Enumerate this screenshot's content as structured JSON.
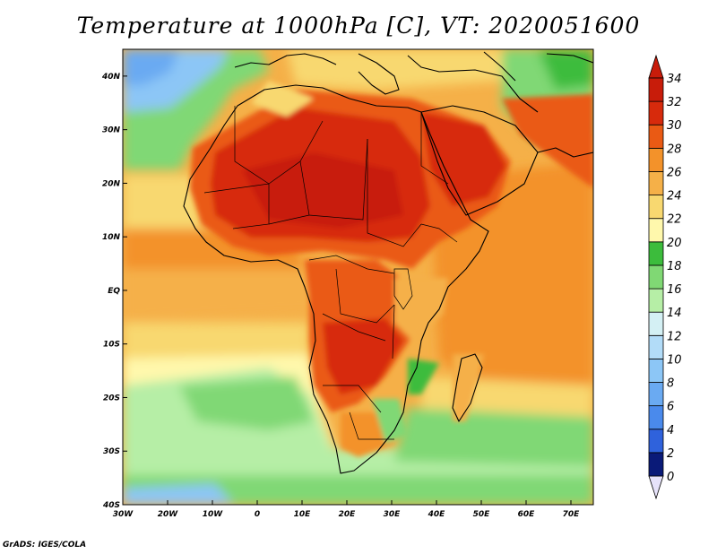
{
  "title": "Temperature at 1000hPa [C], VT: 2020051600",
  "credit": "GrADS: IGES/COLA",
  "map": {
    "lon_range": [
      -30,
      75
    ],
    "lat_range": [
      -40,
      45
    ],
    "lon_ticks": [
      {
        "value": -30,
        "label": "30W"
      },
      {
        "value": -20,
        "label": "20W"
      },
      {
        "value": -10,
        "label": "10W"
      },
      {
        "value": 0,
        "label": "0"
      },
      {
        "value": 10,
        "label": "10E"
      },
      {
        "value": 20,
        "label": "20E"
      },
      {
        "value": 30,
        "label": "30E"
      },
      {
        "value": 40,
        "label": "40E"
      },
      {
        "value": 50,
        "label": "50E"
      },
      {
        "value": 60,
        "label": "60E"
      },
      {
        "value": 70,
        "label": "70E"
      }
    ],
    "lat_ticks": [
      {
        "value": 40,
        "label": "40N"
      },
      {
        "value": 30,
        "label": "30N"
      },
      {
        "value": 20,
        "label": "20N"
      },
      {
        "value": 10,
        "label": "10N"
      },
      {
        "value": 0,
        "label": "EQ"
      },
      {
        "value": -10,
        "label": "10S"
      },
      {
        "value": -20,
        "label": "20S"
      },
      {
        "value": -30,
        "label": "30S"
      },
      {
        "value": -40,
        "label": "40S"
      }
    ]
  },
  "colorbar": {
    "levels": [
      0,
      2,
      4,
      6,
      8,
      10,
      12,
      14,
      16,
      18,
      20,
      22,
      24,
      26,
      28,
      30,
      32,
      34
    ],
    "colors": [
      "#0a1a78",
      "#1e3cc8",
      "#2f62dc",
      "#4a8aec",
      "#6aaaf2",
      "#8cc6f6",
      "#b2dcf8",
      "#d4f0f4",
      "#b6eea6",
      "#80d874",
      "#3cbc3c",
      "#fff8ac",
      "#f8d870",
      "#f5b048",
      "#f3922a",
      "#ea5a14",
      "#d72a0c",
      "#c81c0a",
      "#e6e2fa"
    ]
  }
}
